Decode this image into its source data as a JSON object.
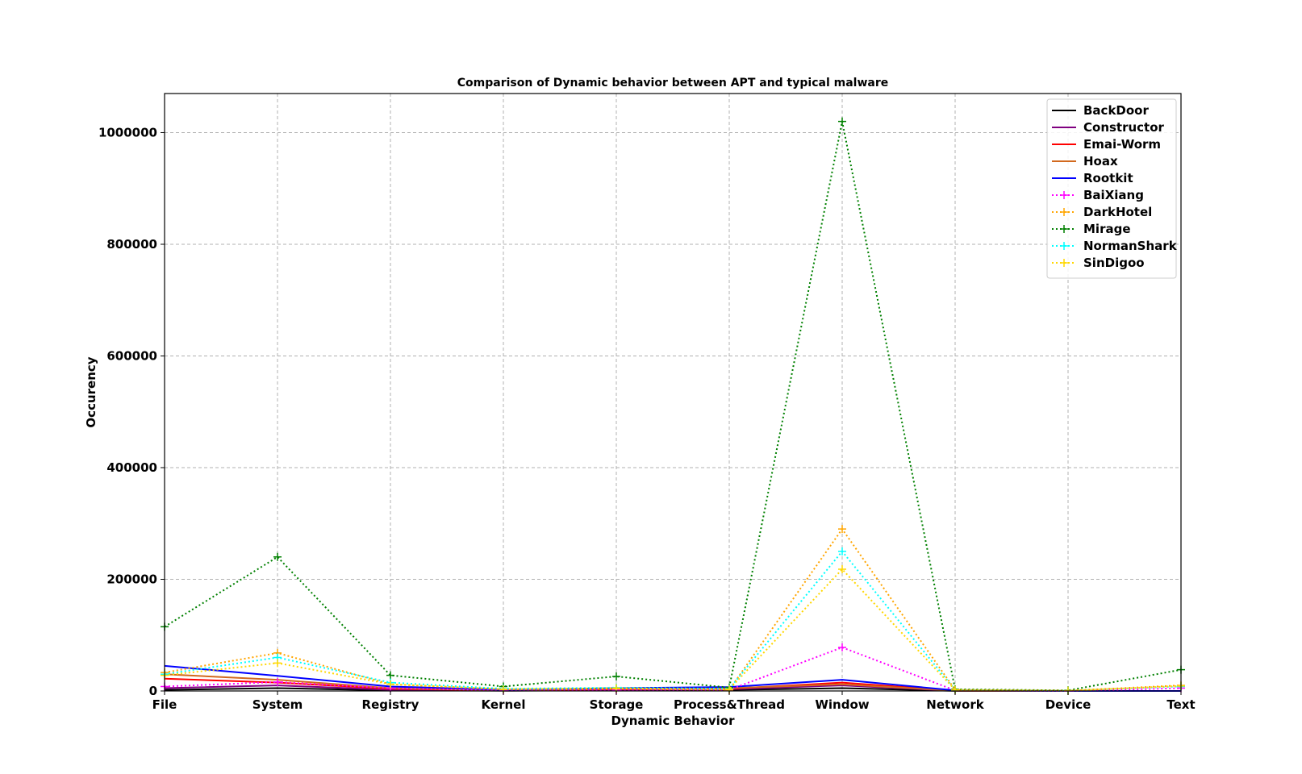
{
  "chart_data": {
    "type": "line",
    "title": "Comparison of Dynamic behavior between APT and typical malware",
    "xlabel": "Dynamic Behavior",
    "ylabel": "Occurency",
    "categories": [
      "File",
      "System",
      "Registry",
      "Kernel",
      "Storage",
      "Process&Thread",
      "Window",
      "Network",
      "Device",
      "Text"
    ],
    "ylim": [
      0,
      1070000
    ],
    "yticks": [
      0,
      200000,
      400000,
      600000,
      800000,
      1000000
    ],
    "ytick_labels": [
      "0",
      "200000",
      "400000",
      "600000",
      "800000",
      "1000000"
    ],
    "grid": true,
    "legend_position": "top-right",
    "series": [
      {
        "name": "BackDoor",
        "color": "#000000",
        "style": "solid",
        "marker": "none",
        "values": [
          2000,
          5000,
          1000,
          500,
          1000,
          2000,
          5000,
          200,
          0,
          0
        ]
      },
      {
        "name": "Constructor",
        "color": "#800080",
        "style": "solid",
        "marker": "none",
        "values": [
          5000,
          10000,
          2000,
          500,
          2000,
          3000,
          10000,
          300,
          0,
          0
        ]
      },
      {
        "name": "Emai-Worm",
        "color": "#ff0000",
        "style": "solid",
        "marker": "none",
        "values": [
          22000,
          15000,
          4000,
          1000,
          3000,
          4000,
          15000,
          500,
          0,
          0
        ]
      },
      {
        "name": "Hoax",
        "color": "#d2691e",
        "style": "solid",
        "marker": "none",
        "values": [
          30000,
          20000,
          5000,
          1500,
          4000,
          5000,
          12000,
          500,
          0,
          0
        ]
      },
      {
        "name": "Rootkit",
        "color": "#0000ff",
        "style": "solid",
        "marker": "none",
        "values": [
          45000,
          27000,
          8000,
          2000,
          5000,
          7000,
          20000,
          1000,
          0,
          0
        ]
      },
      {
        "name": "BaiXiang",
        "color": "#ff00ff",
        "style": "dotted",
        "marker": "plus",
        "values": [
          8000,
          16000,
          5000,
          1000,
          1500,
          2000,
          78000,
          1000,
          0,
          5000
        ]
      },
      {
        "name": "DarkHotel",
        "color": "#ffa500",
        "style": "dotted",
        "marker": "plus",
        "values": [
          33000,
          68000,
          12000,
          3000,
          4000,
          2000,
          290000,
          2000,
          500,
          10000
        ]
      },
      {
        "name": "Mirage",
        "color": "#008000",
        "style": "dotted",
        "marker": "plus",
        "values": [
          115000,
          240000,
          28000,
          8000,
          26000,
          6000,
          1020000,
          3000,
          1000,
          38000
        ]
      },
      {
        "name": "NormanShark",
        "color": "#00ffff",
        "style": "dotted",
        "marker": "plus",
        "values": [
          30000,
          60000,
          15000,
          4000,
          6000,
          4000,
          250000,
          2000,
          500,
          8000
        ]
      },
      {
        "name": "SinDigoo",
        "color": "#ffd700",
        "style": "dotted",
        "marker": "plus",
        "values": [
          28000,
          50000,
          12000,
          3000,
          5000,
          3000,
          218000,
          2000,
          500,
          9000
        ]
      }
    ]
  }
}
